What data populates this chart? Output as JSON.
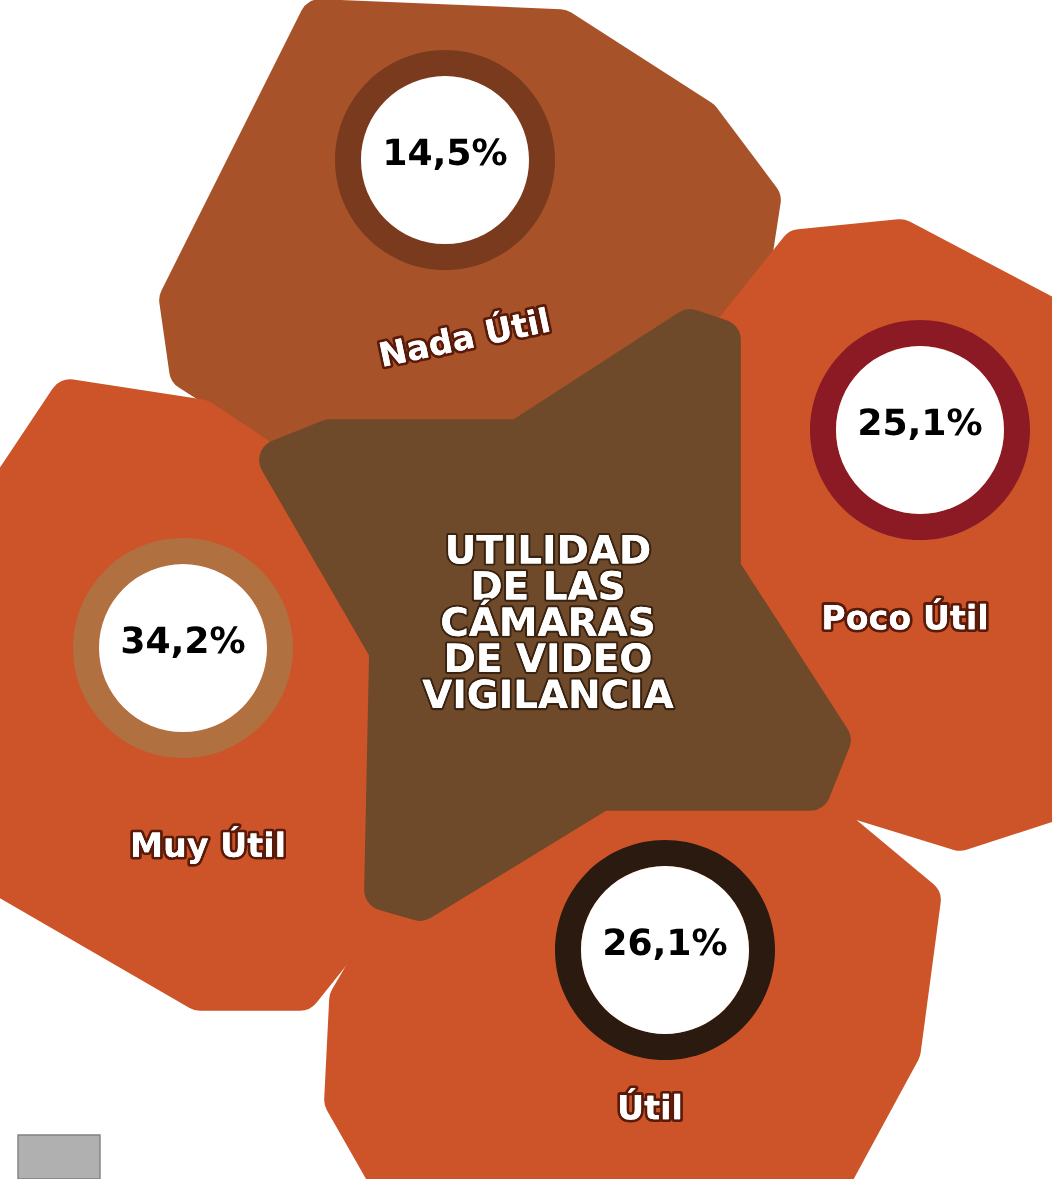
{
  "chart_data": {
    "type": "other",
    "title": "UTILIDAD\nDE LAS\nCÁMARAS\nDE VIDEO\nVIGILANCIA",
    "categories": [
      "Nada Útil",
      "Poco Útil",
      "Útil",
      "Muy Útil"
    ],
    "values": [
      14.5,
      25.1,
      26.1,
      34.2
    ],
    "value_labels": [
      "14,5%",
      "25,1%",
      "26,1%",
      "34,2%"
    ]
  }
}
